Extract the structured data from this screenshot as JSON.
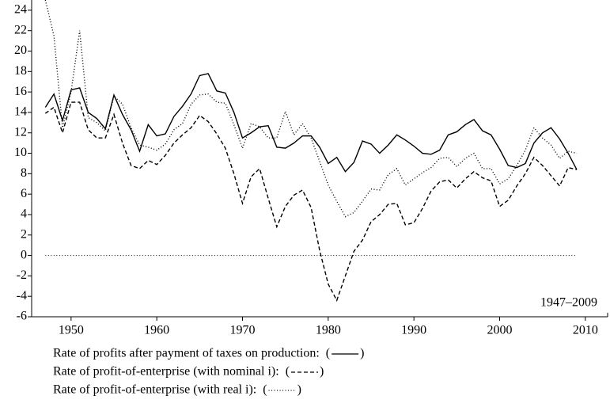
{
  "chart_data": {
    "type": "line",
    "annotation": "1947–2009",
    "x": [
      1947,
      1948,
      1949,
      1950,
      1951,
      1952,
      1953,
      1954,
      1955,
      1956,
      1957,
      1958,
      1959,
      1960,
      1961,
      1962,
      1963,
      1964,
      1965,
      1966,
      1967,
      1968,
      1969,
      1970,
      1971,
      1972,
      1973,
      1974,
      1975,
      1976,
      1977,
      1978,
      1979,
      1980,
      1981,
      1982,
      1983,
      1984,
      1985,
      1986,
      1987,
      1988,
      1989,
      1990,
      1991,
      1992,
      1993,
      1994,
      1995,
      1996,
      1997,
      1998,
      1999,
      2000,
      2001,
      2002,
      2003,
      2004,
      2005,
      2006,
      2007,
      2008,
      2009
    ],
    "series": [
      {
        "name": "Rate of profits after payment of taxes on production:",
        "color": "#000000",
        "dash": "solid",
        "values": [
          14.5,
          15.8,
          13.2,
          16.2,
          16.4,
          14.0,
          13.4,
          12.4,
          15.7,
          13.8,
          12.3,
          10.2,
          12.8,
          11.7,
          11.9,
          13.6,
          14.6,
          15.8,
          17.6,
          17.8,
          16.1,
          15.9,
          14.0,
          11.5,
          12.0,
          12.6,
          12.7,
          10.6,
          10.5,
          11.0,
          11.7,
          11.7,
          10.6,
          9.0,
          9.6,
          8.2,
          9.1,
          11.2,
          10.9,
          10.0,
          10.8,
          11.8,
          11.3,
          10.7,
          10.0,
          9.9,
          10.3,
          11.8,
          12.1,
          12.8,
          13.3,
          12.2,
          11.8,
          10.4,
          8.8,
          8.6,
          9.0,
          11.0,
          12.0,
          12.5,
          11.4,
          10.0,
          8.4
        ]
      },
      {
        "name": "Rate of profit-of-enterprise (with nominal i):",
        "color": "#000000",
        "dash": "dashed",
        "values": [
          13.9,
          14.5,
          12.0,
          15.0,
          15.0,
          12.3,
          11.5,
          11.5,
          13.8,
          11.0,
          8.8,
          8.5,
          9.3,
          8.9,
          9.8,
          11.0,
          11.8,
          12.5,
          13.7,
          13.1,
          11.9,
          10.5,
          8.0,
          5.1,
          7.7,
          8.5,
          5.6,
          2.8,
          4.8,
          5.9,
          6.4,
          4.7,
          0.5,
          -2.8,
          -4.4,
          -2.0,
          0.4,
          1.5,
          3.3,
          4.0,
          5.0,
          5.1,
          3.0,
          3.2,
          4.6,
          6.3,
          7.2,
          7.4,
          6.6,
          7.5,
          8.2,
          7.6,
          7.3,
          4.8,
          5.4,
          6.8,
          8.0,
          9.6,
          8.8,
          7.8,
          6.8,
          8.6,
          8.4
        ]
      },
      {
        "name": "Rate of profit-of-enterprise (with real i):",
        "color": "#000000",
        "dash": "dotted",
        "values": [
          25.0,
          21.5,
          12.5,
          16.0,
          22.0,
          13.5,
          13.0,
          12.2,
          15.6,
          14.8,
          12.5,
          10.8,
          10.6,
          10.3,
          10.9,
          12.3,
          12.9,
          14.8,
          15.7,
          15.8,
          15.0,
          14.9,
          12.8,
          10.5,
          12.9,
          12.6,
          11.5,
          11.5,
          14.1,
          11.8,
          12.9,
          11.5,
          9.2,
          6.9,
          5.3,
          3.8,
          4.2,
          5.3,
          6.5,
          6.4,
          7.9,
          8.5,
          6.9,
          7.5,
          8.1,
          8.6,
          9.5,
          9.6,
          8.7,
          9.5,
          10.0,
          8.5,
          8.5,
          7.0,
          7.5,
          8.8,
          10.3,
          12.5,
          11.5,
          10.8,
          9.5,
          10.2,
          10.0
        ]
      }
    ],
    "legend_brackets": [
      "(",
      ")"
    ],
    "reference_line": 0,
    "xlim": [
      1945.4,
      2012.6
    ],
    "xticks": [
      1950,
      1960,
      1970,
      1980,
      1990,
      2000,
      2010
    ],
    "ylim": [
      -6,
      25
    ],
    "yticks": [
      -6,
      -4,
      -2,
      0,
      2,
      4,
      6,
      8,
      10,
      12,
      14,
      16,
      18,
      20,
      22,
      24
    ]
  }
}
